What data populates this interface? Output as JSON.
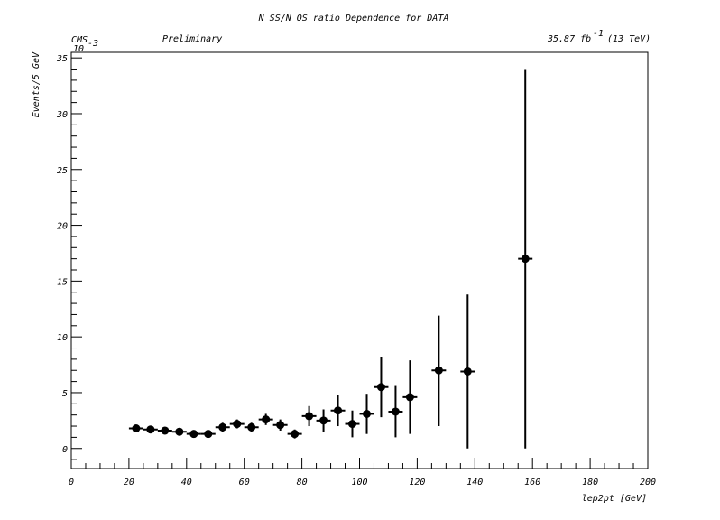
{
  "chart_data": {
    "type": "scatter",
    "title": "N_SS/N_OS ratio Dependence for DATA",
    "experiment_label": "CMS",
    "status_label": "Preliminary",
    "lumi_label": "35.87 fb",
    "lumi_superscript": "-1",
    "energy_label": "(13 TeV)",
    "xlabel": "lep2pt [GeV]",
    "ylabel": "Events/5 GeV",
    "y_exponent_label": "10",
    "y_exponent_power": "-3",
    "xlim": [
      0,
      200
    ],
    "ylim": [
      -1.8,
      35.5
    ],
    "x_ticks": [
      0,
      20,
      40,
      60,
      80,
      100,
      120,
      140,
      160,
      180,
      200
    ],
    "x_tick_labels": [
      "0",
      "20",
      "40",
      "60",
      "80",
      "100",
      "120",
      "140",
      "160",
      "180",
      "200"
    ],
    "y_ticks": [
      0,
      5,
      10,
      15,
      20,
      25,
      30,
      35
    ],
    "y_tick_labels": [
      "0",
      "5",
      "10",
      "15",
      "20",
      "25",
      "30",
      "35"
    ],
    "grid": false,
    "points": [
      {
        "x": 22.5,
        "xerr": 2.5,
        "y": 1.8,
        "yerr_low": 0.3,
        "yerr_high": 0.3
      },
      {
        "x": 27.5,
        "xerr": 2.5,
        "y": 1.7,
        "yerr_low": 0.3,
        "yerr_high": 0.3
      },
      {
        "x": 32.5,
        "xerr": 2.5,
        "y": 1.6,
        "yerr_low": 0.3,
        "yerr_high": 0.3
      },
      {
        "x": 37.5,
        "xerr": 2.5,
        "y": 1.5,
        "yerr_low": 0.3,
        "yerr_high": 0.3
      },
      {
        "x": 42.5,
        "xerr": 2.5,
        "y": 1.3,
        "yerr_low": 0.3,
        "yerr_high": 0.3
      },
      {
        "x": 47.5,
        "xerr": 2.5,
        "y": 1.3,
        "yerr_low": 0.3,
        "yerr_high": 0.3
      },
      {
        "x": 52.5,
        "xerr": 2.5,
        "y": 1.9,
        "yerr_low": 0.4,
        "yerr_high": 0.4
      },
      {
        "x": 57.5,
        "xerr": 2.5,
        "y": 2.2,
        "yerr_low": 0.4,
        "yerr_high": 0.4
      },
      {
        "x": 62.5,
        "xerr": 2.5,
        "y": 1.9,
        "yerr_low": 0.4,
        "yerr_high": 0.4
      },
      {
        "x": 67.5,
        "xerr": 2.5,
        "y": 2.6,
        "yerr_low": 0.5,
        "yerr_high": 0.5
      },
      {
        "x": 72.5,
        "xerr": 2.5,
        "y": 2.1,
        "yerr_low": 0.5,
        "yerr_high": 0.5
      },
      {
        "x": 77.5,
        "xerr": 2.5,
        "y": 1.3,
        "yerr_low": 0.4,
        "yerr_high": 0.4
      },
      {
        "x": 82.5,
        "xerr": 2.5,
        "y": 2.9,
        "yerr_low": 0.9,
        "yerr_high": 0.9
      },
      {
        "x": 87.5,
        "xerr": 2.5,
        "y": 2.5,
        "yerr_low": 1.0,
        "yerr_high": 1.0
      },
      {
        "x": 92.5,
        "xerr": 2.5,
        "y": 3.4,
        "yerr_low": 1.4,
        "yerr_high": 1.4
      },
      {
        "x": 97.5,
        "xerr": 2.5,
        "y": 2.2,
        "yerr_low": 1.2,
        "yerr_high": 1.2
      },
      {
        "x": 102.5,
        "xerr": 2.5,
        "y": 3.1,
        "yerr_low": 1.8,
        "yerr_high": 1.8
      },
      {
        "x": 107.5,
        "xerr": 2.5,
        "y": 5.5,
        "yerr_low": 2.7,
        "yerr_high": 2.7
      },
      {
        "x": 112.5,
        "xerr": 2.5,
        "y": 3.3,
        "yerr_low": 2.3,
        "yerr_high": 2.3
      },
      {
        "x": 117.5,
        "xerr": 2.5,
        "y": 4.6,
        "yerr_low": 3.3,
        "yerr_high": 3.3
      },
      {
        "x": 127.5,
        "xerr": 2.5,
        "y": 7.0,
        "yerr_low": 5.0,
        "yerr_high": 4.9
      },
      {
        "x": 137.5,
        "xerr": 2.5,
        "y": 6.9,
        "yerr_low": 6.9,
        "yerr_high": 6.9
      },
      {
        "x": 157.5,
        "xerr": 2.5,
        "y": 17.0,
        "yerr_low": 17.0,
        "yerr_high": 17.0
      }
    ],
    "marker_color": "#000000"
  }
}
